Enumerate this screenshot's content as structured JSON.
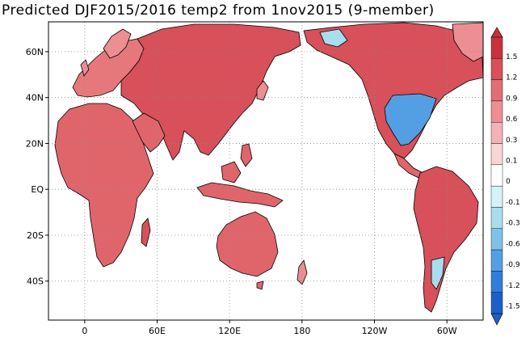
{
  "title": "Predicted DJF2015/2016 temp2 from 1nov2015 (9-member)",
  "map": {
    "lat_ticks": [
      "60N",
      "40N",
      "20N",
      "EQ",
      "20S",
      "40S"
    ],
    "lat_values": [
      60,
      40,
      20,
      0,
      -20,
      -40
    ],
    "lon_ticks": [
      "0",
      "60E",
      "120E",
      "180",
      "120W",
      "60W"
    ],
    "lon_values": [
      0,
      60,
      120,
      180,
      240,
      300
    ],
    "lon_range": [
      -30,
      330
    ],
    "lat_range": [
      -57,
      73
    ],
    "grid": true,
    "grid_style": "dotted"
  },
  "colorbar": {
    "labels": [
      "1.5",
      "1.2",
      "0.9",
      "0.6",
      "0.3",
      "0.1",
      "0",
      "-0.1",
      "-0.3",
      "-0.6",
      "-0.9",
      "-1.2",
      "-1.5"
    ],
    "colors": [
      "#c8323c",
      "#d8505a",
      "#e26e74",
      "#ec8e92",
      "#f4b2b4",
      "#f9d6d6",
      "#ffffff",
      "#d6f1f8",
      "#a9dcef",
      "#7ec2ea",
      "#549fe3",
      "#2f7ede",
      "#1c5fc9"
    ]
  }
}
